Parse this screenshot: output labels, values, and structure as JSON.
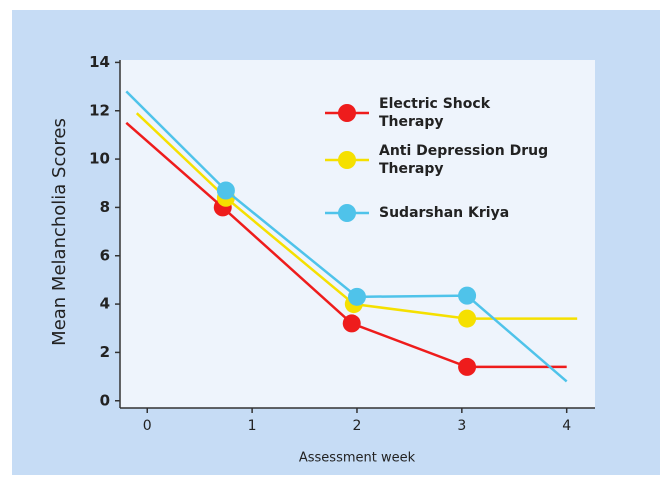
{
  "chart_data": {
    "type": "line",
    "xlabel": "Assessment week",
    "ylabel": "Mean Melancholia Scores",
    "xlim": [
      -0.26,
      4.27
    ],
    "xticks": [
      0,
      1,
      2,
      3,
      4
    ],
    "ylim": [
      -0.3,
      14.1
    ],
    "yticks": [
      0,
      2,
      4,
      6,
      8,
      10,
      12,
      14
    ],
    "legend": "upper right",
    "series": [
      {
        "name": "Electric Shock Therapy",
        "color": "#ee1c1c",
        "x": [
          -0.2,
          0.72,
          1.95,
          3.05,
          4.0
        ],
        "values": [
          11.5,
          8.0,
          3.2,
          1.4,
          1.4
        ]
      },
      {
        "name": "Anti Depression Drug Therapy",
        "color": "#f5e000",
        "x": [
          -0.1,
          0.75,
          1.97,
          3.05,
          4.1
        ],
        "values": [
          11.9,
          8.4,
          4.0,
          3.4,
          3.4
        ]
      },
      {
        "name": "Sudarshan Kriya",
        "color": "#4fc3ea",
        "x": [
          -0.2,
          0.75,
          2.0,
          3.05,
          4.0
        ],
        "values": [
          12.8,
          8.7,
          4.3,
          4.35,
          0.8
        ]
      }
    ]
  }
}
